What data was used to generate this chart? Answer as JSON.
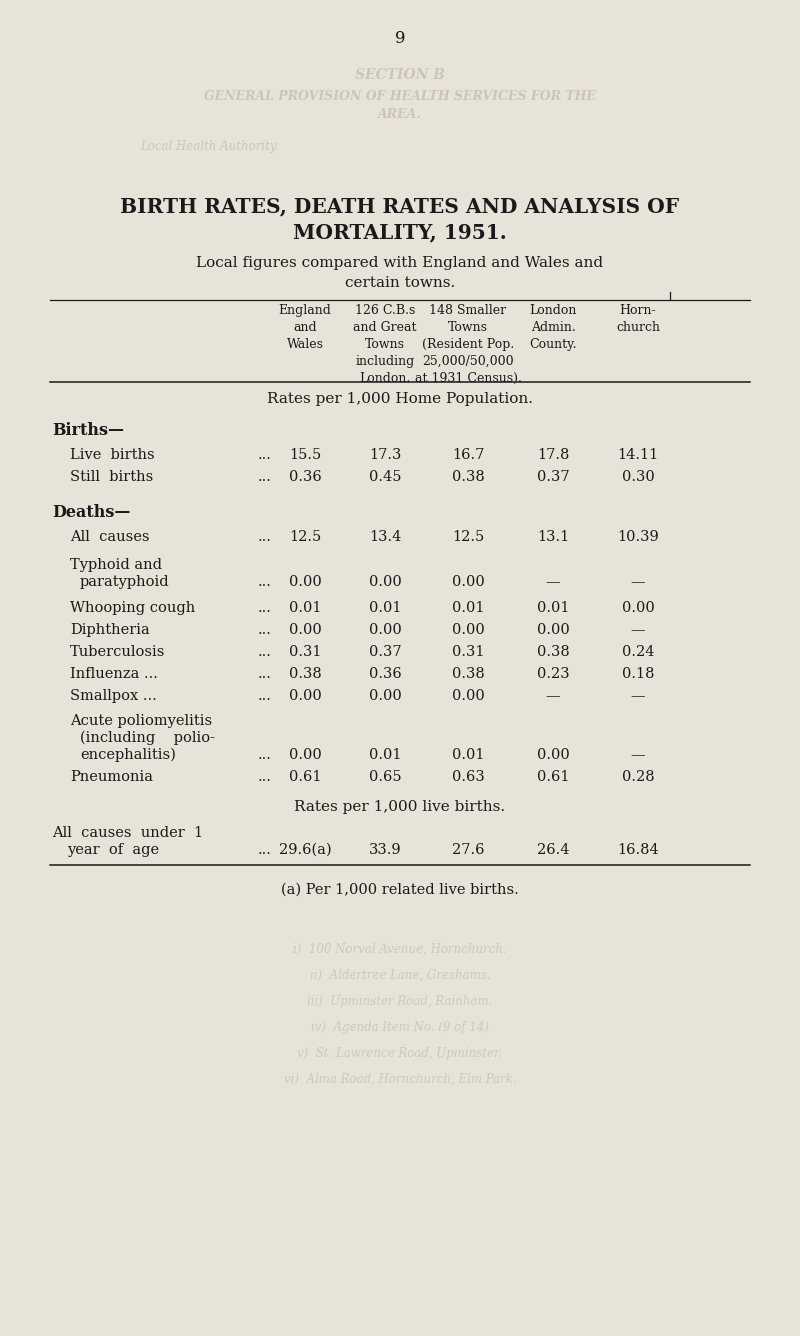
{
  "page_number": "9",
  "bg_color": "#e8e3d8",
  "text_color": "#1a1a1a",
  "watermark_color": "#c0b9ac",
  "title_line1": "BIRTH RATES, DEATH RATES AND ANALYSIS OF",
  "title_line2": "MORTALITY, 1951.",
  "subtitle1": "Local figures compared with England and Wales and",
  "subtitle2": "certain towns.",
  "col_header_eng": "England\nand\nWales",
  "col_header_126": "126 C.B.s\nand Great\nTowns\nincluding\nLondon.",
  "col_header_148": "148 Smaller\nTowns\n(Resident Pop.\n25,000/50,000\nat 1931 Census).",
  "col_header_lon": "London\nAdmin.\nCounty.",
  "col_header_horn": "Horn-\nchurch",
  "section1_header": "Rates per 1,000 Home Population.",
  "section2_header": "Rates per 1,000 live births.",
  "footnote": "(a) Per 1,000 related live births.",
  "wm1": "SECTION B",
  "wm2": "GENERAL PROVISION OF HEALTH SERVICES FOR THE",
  "wm3": "AREA.",
  "wm4": "Local Health Authority."
}
